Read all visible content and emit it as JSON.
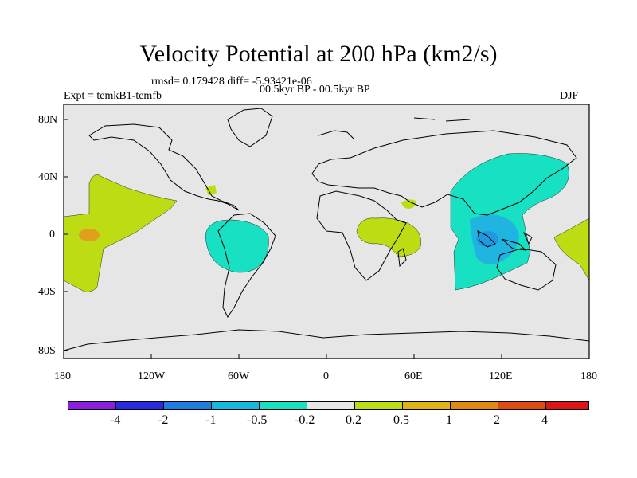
{
  "title": "Velocity Potential at 200 hPa (km2/s)",
  "stats": "rmsd= 0.179428 diff= -5.93421e-06",
  "experiment": "Expt = temkB1-temfb",
  "period": "00.5kyr BP - 00.5kyr BP",
  "season": "DJF",
  "map": {
    "lat_ticks": [
      "80N",
      "40N",
      "0",
      "40S",
      "80S"
    ],
    "lon_ticks": [
      "180",
      "120W",
      "60W",
      "0",
      "60E",
      "120E",
      "180"
    ]
  },
  "colorbar": {
    "labels": [
      "-4",
      "-2",
      "-1",
      "-0.5",
      "-0.2",
      "0.2",
      "0.5",
      "1",
      "2",
      "4"
    ],
    "colors": [
      "#8A1FE0",
      "#2A2AE0",
      "#1F7FE0",
      "#14B8E0",
      "#18E0C2",
      "#E6E6E6",
      "#BEDC14",
      "#E0B414",
      "#E08A14",
      "#E04A14",
      "#E01414"
    ]
  },
  "colors": {
    "background": "#E6E6E6",
    "pos_light": "#BEDC14",
    "pos_mid": "#E0A01E",
    "neg_light": "#18E0C2",
    "neg_mid": "#20B4E0",
    "neg_strong": "#1F88E0"
  }
}
